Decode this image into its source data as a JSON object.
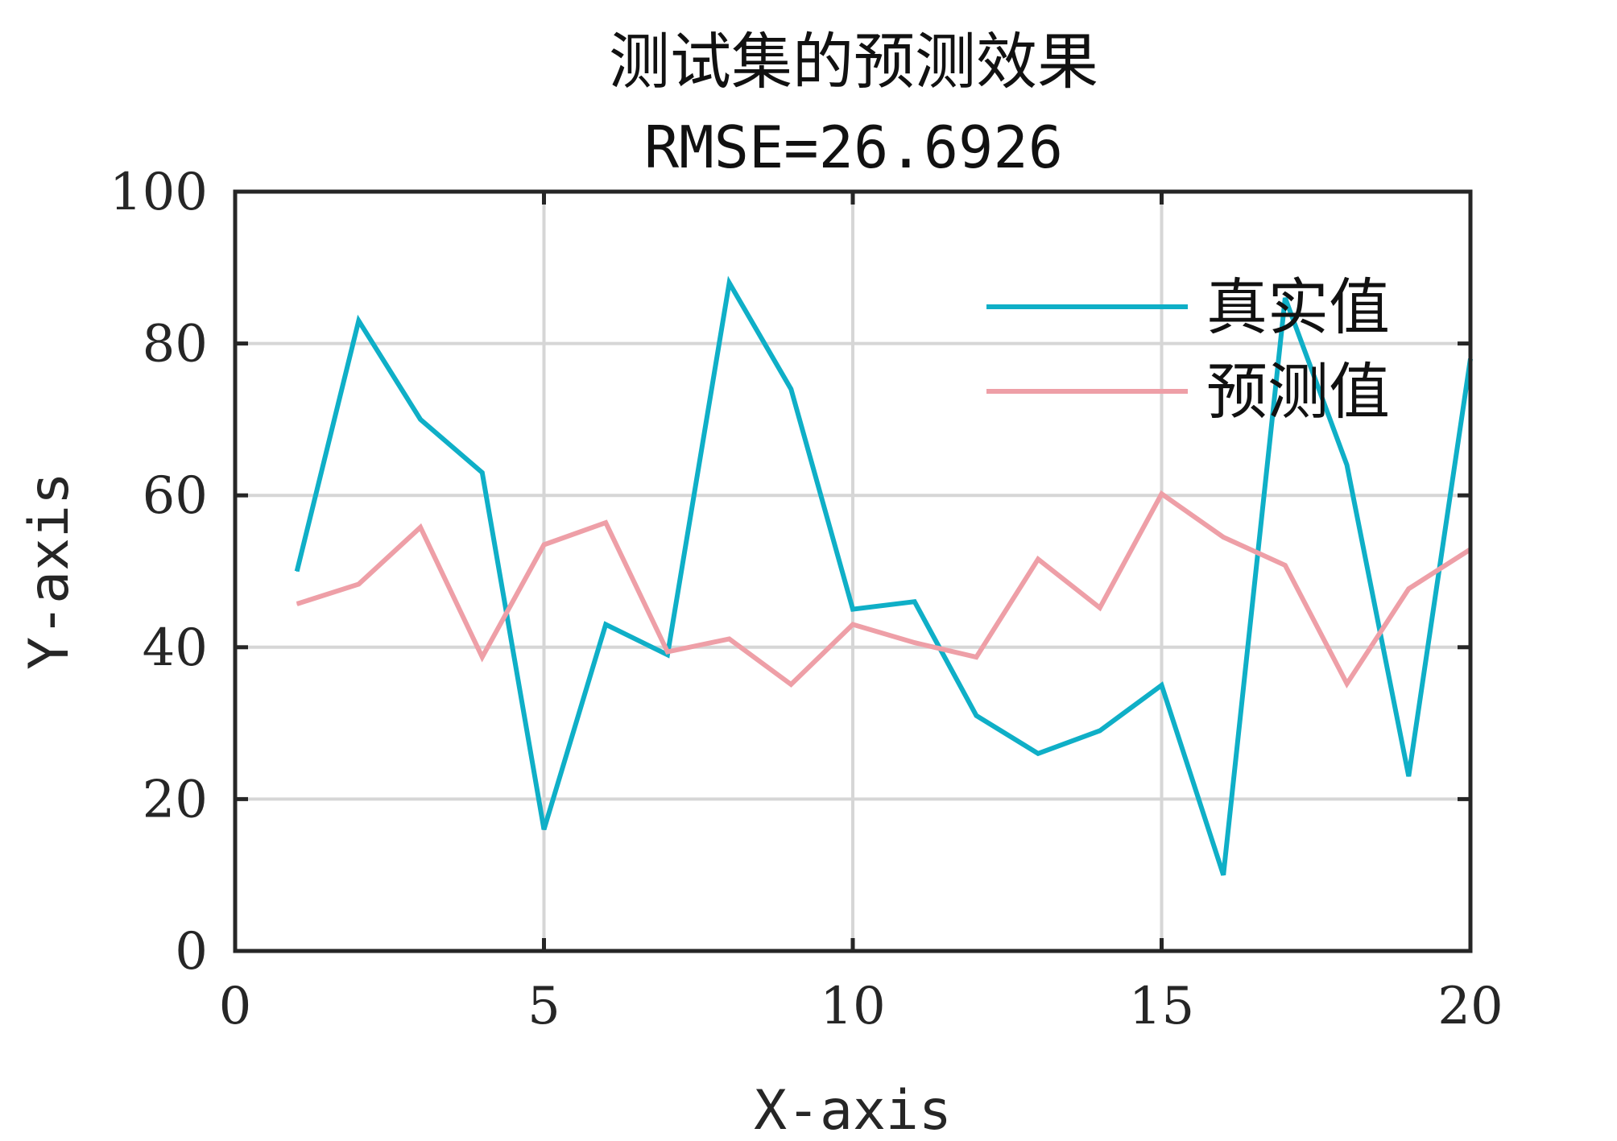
{
  "chart_data": {
    "type": "line",
    "title": "测试集的预测效果",
    "subtitle": "RMSE=26.6926",
    "xlabel": "X-axis",
    "ylabel": "Y-axis",
    "xlim": [
      0,
      20
    ],
    "ylim": [
      0,
      100
    ],
    "xticks": [
      0,
      5,
      10,
      15,
      20
    ],
    "yticks": [
      0,
      20,
      40,
      60,
      80,
      100
    ],
    "grid": true,
    "legend_position": "top-right",
    "x": [
      1,
      2,
      3,
      4,
      5,
      6,
      7,
      8,
      9,
      10,
      11,
      12,
      13,
      14,
      15,
      16,
      17,
      18,
      19,
      20
    ],
    "series": [
      {
        "name": "真实值",
        "color": "#0fafc7",
        "values": [
          50,
          83,
          70,
          63,
          16,
          43,
          39,
          88,
          74,
          45,
          46,
          31,
          26,
          29,
          35,
          10,
          86,
          64,
          23,
          78
        ]
      },
      {
        "name": "预测值",
        "color": "#ee9fa7",
        "values": [
          45.7,
          48.3,
          55.8,
          38.7,
          53.5,
          56.4,
          39.4,
          41.1,
          35.1,
          43.0,
          40.6,
          38.7,
          51.6,
          45.2,
          60.2,
          54.5,
          50.8,
          35.2,
          47.7,
          52.9
        ]
      }
    ]
  }
}
